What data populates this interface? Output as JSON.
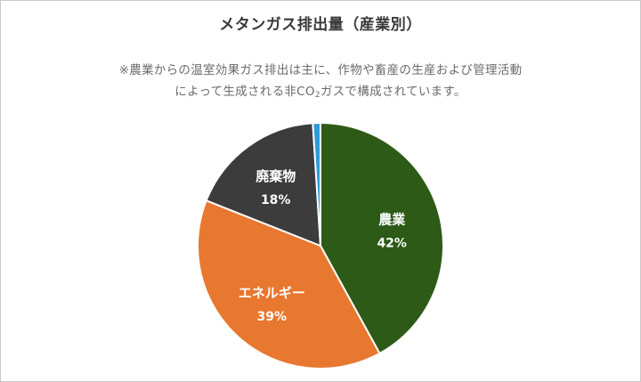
{
  "title": "メタンガス排出量（産業別）",
  "note": {
    "line1": "※農業からの温室効果ガス排出は主に、作物や畜産の生産および管理活動",
    "line2_before": "によって生成される非CO",
    "line2_sub": "2",
    "line2_after": "ガスで構成されています。"
  },
  "chart_data": {
    "type": "pie",
    "title": "メタンガス排出量（産業別）",
    "slices": [
      {
        "label": "農業",
        "value": 42,
        "value_label": "42%",
        "color": "#2d5a16"
      },
      {
        "label": "エネルギー",
        "value": 39,
        "value_label": "39%",
        "color": "#e8772f"
      },
      {
        "label": "廃棄物",
        "value": 18,
        "value_label": "18%",
        "color": "#3c3c3c"
      },
      {
        "label": "",
        "value": 1,
        "value_label": "",
        "color": "#2e9bd6"
      }
    ],
    "start_angle": "12 o'clock",
    "direction": "clockwise",
    "slice_border_color": "#ffffff"
  }
}
